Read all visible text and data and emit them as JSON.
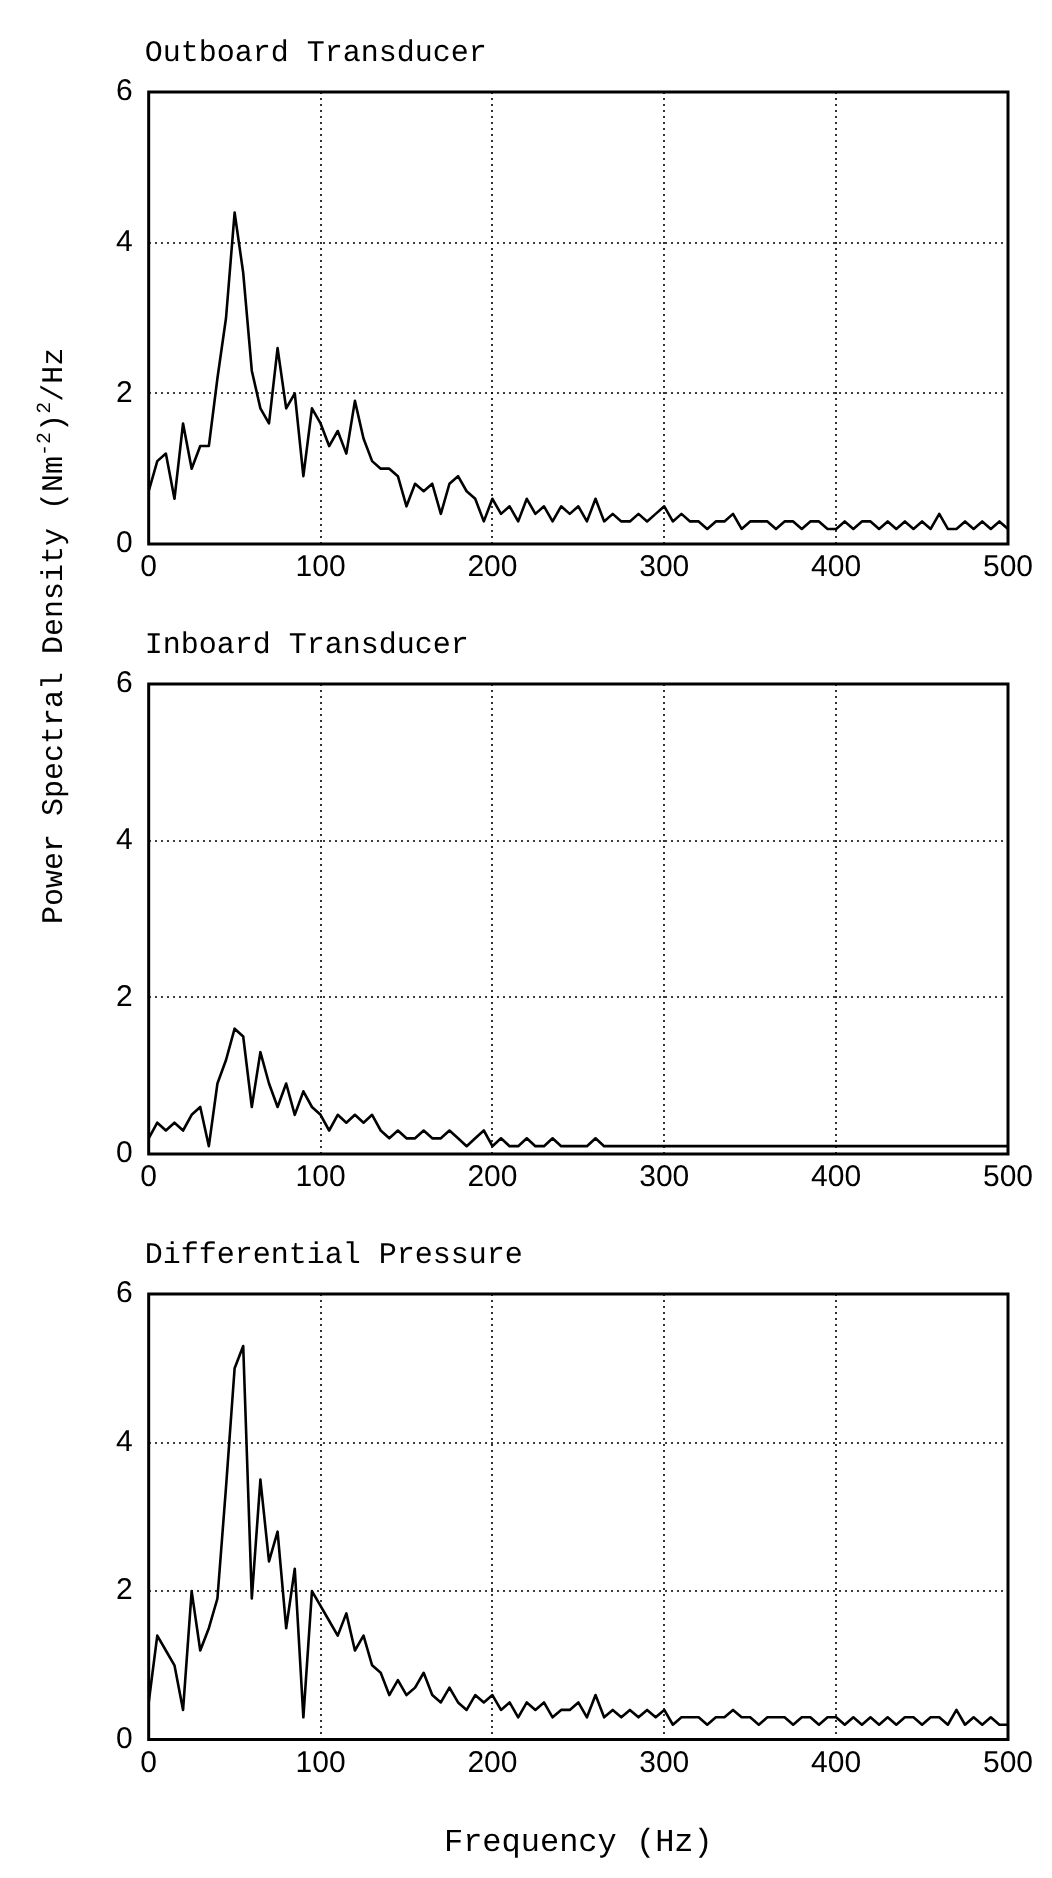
{
  "chart_data": [
    {
      "type": "line",
      "title": "Outboard Transducer",
      "color": "#000000",
      "xlim": [
        0,
        500
      ],
      "xticks": [
        0,
        100,
        200,
        300,
        400,
        500
      ],
      "ylim": [
        0,
        6
      ],
      "yticks": [
        0,
        2,
        4,
        6
      ],
      "grid": true,
      "legend": false,
      "marker": "none",
      "line_style": "solid",
      "x": [
        0,
        5,
        10,
        15,
        20,
        25,
        30,
        35,
        40,
        45,
        50,
        55,
        60,
        65,
        70,
        75,
        80,
        85,
        90,
        95,
        100,
        105,
        110,
        115,
        120,
        125,
        130,
        135,
        140,
        145,
        150,
        155,
        160,
        165,
        170,
        175,
        180,
        185,
        190,
        195,
        200,
        205,
        210,
        215,
        220,
        225,
        230,
        235,
        240,
        245,
        250,
        255,
        260,
        265,
        270,
        275,
        280,
        285,
        290,
        295,
        300,
        305,
        310,
        315,
        320,
        325,
        330,
        335,
        340,
        345,
        350,
        355,
        360,
        365,
        370,
        375,
        380,
        385,
        390,
        395,
        400,
        405,
        410,
        415,
        420,
        425,
        430,
        435,
        440,
        445,
        450,
        455,
        460,
        465,
        470,
        475,
        480,
        485,
        490,
        495,
        500
      ],
      "values": [
        0.7,
        1.1,
        1.2,
        0.6,
        1.6,
        1.0,
        1.3,
        1.3,
        2.2,
        3.0,
        4.4,
        3.6,
        2.3,
        1.8,
        1.6,
        2.6,
        1.8,
        2.0,
        0.9,
        1.8,
        1.6,
        1.3,
        1.5,
        1.2,
        1.9,
        1.4,
        1.1,
        1.0,
        1.0,
        0.9,
        0.5,
        0.8,
        0.7,
        0.8,
        0.4,
        0.8,
        0.9,
        0.7,
        0.6,
        0.3,
        0.6,
        0.4,
        0.5,
        0.3,
        0.6,
        0.4,
        0.5,
        0.3,
        0.5,
        0.4,
        0.5,
        0.3,
        0.6,
        0.3,
        0.4,
        0.3,
        0.3,
        0.4,
        0.3,
        0.4,
        0.5,
        0.3,
        0.4,
        0.3,
        0.3,
        0.2,
        0.3,
        0.3,
        0.4,
        0.2,
        0.3,
        0.3,
        0.3,
        0.2,
        0.3,
        0.3,
        0.2,
        0.3,
        0.3,
        0.2,
        0.2,
        0.3,
        0.2,
        0.3,
        0.3,
        0.2,
        0.3,
        0.2,
        0.3,
        0.2,
        0.3,
        0.2,
        0.4,
        0.2,
        0.2,
        0.3,
        0.2,
        0.3,
        0.2,
        0.3,
        0.2
      ]
    },
    {
      "type": "line",
      "title": "Inboard Transducer",
      "ylabel": "Power Spectral Density (Nm$^{-2}$)$^{2}$/Hz",
      "color": "#000000",
      "xlim": [
        0,
        500
      ],
      "xticks": [
        0,
        100,
        200,
        300,
        400,
        500
      ],
      "ylim": [
        0,
        6
      ],
      "yticks": [
        0,
        2,
        4,
        6
      ],
      "grid": true,
      "legend": false,
      "marker": "none",
      "line_style": "solid",
      "x": [
        0,
        5,
        10,
        15,
        20,
        25,
        30,
        35,
        40,
        45,
        50,
        55,
        60,
        65,
        70,
        75,
        80,
        85,
        90,
        95,
        100,
        105,
        110,
        115,
        120,
        125,
        130,
        135,
        140,
        145,
        150,
        155,
        160,
        165,
        170,
        175,
        180,
        185,
        190,
        195,
        200,
        205,
        210,
        215,
        220,
        225,
        230,
        235,
        240,
        245,
        250,
        255,
        260,
        265,
        270,
        275,
        280,
        285,
        290,
        295,
        300,
        305,
        310,
        315,
        320,
        325,
        330,
        335,
        340,
        345,
        350,
        355,
        360,
        365,
        370,
        375,
        380,
        385,
        390,
        395,
        400,
        405,
        410,
        415,
        420,
        425,
        430,
        435,
        440,
        445,
        450,
        455,
        460,
        465,
        470,
        475,
        480,
        485,
        490,
        495,
        500
      ],
      "values": [
        0.2,
        0.4,
        0.3,
        0.4,
        0.3,
        0.5,
        0.6,
        0.1,
        0.9,
        1.2,
        1.6,
        1.5,
        0.6,
        1.3,
        0.9,
        0.6,
        0.9,
        0.5,
        0.8,
        0.6,
        0.5,
        0.3,
        0.5,
        0.4,
        0.5,
        0.4,
        0.5,
        0.3,
        0.2,
        0.3,
        0.2,
        0.2,
        0.3,
        0.2,
        0.2,
        0.3,
        0.2,
        0.1,
        0.2,
        0.3,
        0.1,
        0.2,
        0.1,
        0.1,
        0.2,
        0.1,
        0.1,
        0.2,
        0.1,
        0.1,
        0.1,
        0.1,
        0.2,
        0.1,
        0.1,
        0.1,
        0.1,
        0.1,
        0.1,
        0.1,
        0.1,
        0.1,
        0.1,
        0.1,
        0.1,
        0.1,
        0.1,
        0.1,
        0.1,
        0.1,
        0.1,
        0.1,
        0.1,
        0.1,
        0.1,
        0.1,
        0.1,
        0.1,
        0.1,
        0.1,
        0.1,
        0.1,
        0.1,
        0.1,
        0.1,
        0.1,
        0.1,
        0.1,
        0.1,
        0.1,
        0.1,
        0.1,
        0.1,
        0.1,
        0.1,
        0.1,
        0.1,
        0.1,
        0.1,
        0.1,
        0.1
      ]
    },
    {
      "type": "line",
      "title": "Differential Pressure",
      "xlabel": "Frequency (Hz)",
      "color": "#000000",
      "xlim": [
        0,
        500
      ],
      "xticks": [
        0,
        100,
        200,
        300,
        400,
        500
      ],
      "ylim": [
        0,
        6
      ],
      "yticks": [
        0,
        2,
        4,
        6
      ],
      "grid": true,
      "legend": false,
      "marker": "none",
      "line_style": "solid",
      "x": [
        0,
        5,
        10,
        15,
        20,
        25,
        30,
        35,
        40,
        45,
        50,
        55,
        60,
        65,
        70,
        75,
        80,
        85,
        90,
        95,
        100,
        105,
        110,
        115,
        120,
        125,
        130,
        135,
        140,
        145,
        150,
        155,
        160,
        165,
        170,
        175,
        180,
        185,
        190,
        195,
        200,
        205,
        210,
        215,
        220,
        225,
        230,
        235,
        240,
        245,
        250,
        255,
        260,
        265,
        270,
        275,
        280,
        285,
        290,
        295,
        300,
        305,
        310,
        315,
        320,
        325,
        330,
        335,
        340,
        345,
        350,
        355,
        360,
        365,
        370,
        375,
        380,
        385,
        390,
        395,
        400,
        405,
        410,
        415,
        420,
        425,
        430,
        435,
        440,
        445,
        450,
        455,
        460,
        465,
        470,
        475,
        480,
        485,
        490,
        495,
        500
      ],
      "values": [
        0.5,
        1.4,
        1.2,
        1.0,
        0.4,
        2.0,
        1.2,
        1.5,
        1.9,
        3.4,
        5.0,
        5.3,
        1.9,
        3.5,
        2.4,
        2.8,
        1.5,
        2.3,
        0.3,
        2.0,
        1.8,
        1.6,
        1.4,
        1.7,
        1.2,
        1.4,
        1.0,
        0.9,
        0.6,
        0.8,
        0.6,
        0.7,
        0.9,
        0.6,
        0.5,
        0.7,
        0.5,
        0.4,
        0.6,
        0.5,
        0.6,
        0.4,
        0.5,
        0.3,
        0.5,
        0.4,
        0.5,
        0.3,
        0.4,
        0.4,
        0.5,
        0.3,
        0.6,
        0.3,
        0.4,
        0.3,
        0.4,
        0.3,
        0.4,
        0.3,
        0.4,
        0.2,
        0.3,
        0.3,
        0.3,
        0.2,
        0.3,
        0.3,
        0.4,
        0.3,
        0.3,
        0.2,
        0.3,
        0.3,
        0.3,
        0.2,
        0.3,
        0.3,
        0.2,
        0.3,
        0.3,
        0.2,
        0.3,
        0.2,
        0.3,
        0.2,
        0.3,
        0.2,
        0.3,
        0.3,
        0.2,
        0.3,
        0.3,
        0.2,
        0.4,
        0.2,
        0.3,
        0.2,
        0.3,
        0.2,
        0.2
      ]
    }
  ]
}
